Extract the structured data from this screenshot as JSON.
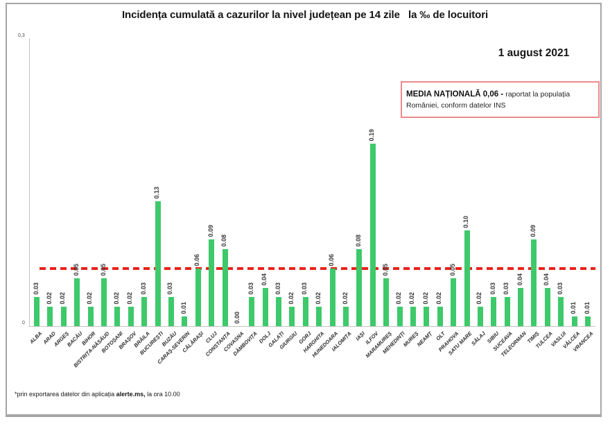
{
  "header": {
    "date_label": "1 august 2021"
  },
  "national_average_box": {
    "bold_text": "MEDIA NAȚIONALĂ  0,06 - ",
    "normal_text": "raportat la populația României, conform datelor INS",
    "border_color": "#ec8a8a"
  },
  "footnote": {
    "prefix": "*prin exportarea datelor din aplicația ",
    "bold": "alerte.ms,",
    "suffix": " la ora 10.00"
  },
  "chart_data": {
    "type": "bar",
    "title": "Incidența cumulată a cazurilor la nivel județean pe 14 zile   la ‰ de locuitori",
    "categories": [
      "ALBA",
      "ARAD",
      "ARGEȘ",
      "BACĂU",
      "BIHOR",
      "BISTRIȚA-NĂSĂUD",
      "BOTOȘANI",
      "BRAȘOV",
      "BRĂILA",
      "BUCUREȘTI",
      "BUZĂU",
      "CARAȘ-SEVERIN",
      "CĂLĂRAȘI",
      "CLUJ",
      "CONSTANȚA",
      "COVASNA",
      "DÂMBOVIȚA",
      "DOLJ",
      "GALAȚI",
      "GIURGIU",
      "GORJ",
      "HARGHITA",
      "HUNEDOARA",
      "IALOMIȚA",
      "IAȘI",
      "ILFOV",
      "MARAMUREȘ",
      "MEHEDINȚI",
      "MUREȘ",
      "NEAMȚ",
      "OLT",
      "PRAHOVA",
      "SATU MARE",
      "SĂLAJ",
      "SIBIU",
      "SUCEAVA",
      "TELEORMAN",
      "TIMIȘ",
      "TULCEA",
      "VASLUI",
      "VÂLCEA",
      "VRANCEA"
    ],
    "values": [
      0.03,
      0.02,
      0.02,
      0.05,
      0.02,
      0.05,
      0.02,
      0.02,
      0.03,
      0.13,
      0.03,
      0.01,
      0.06,
      0.09,
      0.08,
      0.0,
      0.03,
      0.04,
      0.03,
      0.02,
      0.03,
      0.02,
      0.06,
      0.02,
      0.08,
      0.19,
      0.05,
      0.02,
      0.02,
      0.02,
      0.02,
      0.05,
      0.1,
      0.02,
      0.03,
      0.03,
      0.04,
      0.09,
      0.04,
      0.03,
      0.01,
      0.01
    ],
    "xlabel": "",
    "ylabel": "",
    "ylim": [
      0,
      0.3
    ],
    "yticks": {
      "top": "0,3",
      "bottom": "0"
    },
    "grid": false,
    "legend_position": "none",
    "bar_color": "#3ec96b",
    "value_label_decimals": 2,
    "reference_line": {
      "value": 0.06,
      "label": "MEDIA NAȚIONALĂ 0,06",
      "color": "#e8231b",
      "style": "dashed"
    }
  }
}
